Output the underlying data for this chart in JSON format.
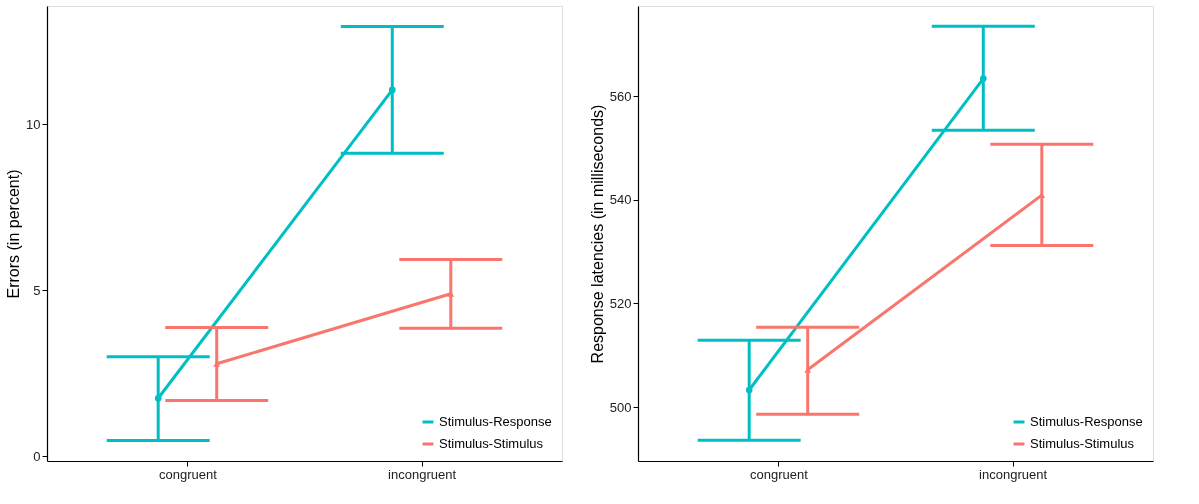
{
  "chart_data": [
    {
      "type": "line",
      "categories": [
        "congruent",
        "incongruent"
      ],
      "ylabel": "Errors (in percent)",
      "ylim": [
        -0.15,
        13.56
      ],
      "yticks": [
        0,
        5,
        10
      ],
      "grid": false,
      "legend": "bottom right",
      "line_style": "solid",
      "series": [
        {
          "name": "Stimulus-Response",
          "color": "#00bfc4",
          "marker": "circle",
          "values": [
            1.74,
            11.03
          ],
          "errors": [
            [
              0.47,
              2.99
            ],
            [
              9.12,
              12.94
            ]
          ]
        },
        {
          "name": "Stimulus-Stimulus",
          "color": "#f8766d",
          "marker": "triangle",
          "values": [
            2.78,
            4.89
          ],
          "errors": [
            [
              1.67,
              3.87
            ],
            [
              3.85,
              5.92
            ]
          ]
        }
      ]
    },
    {
      "type": "line",
      "categories": [
        "congruent",
        "incongruent"
      ],
      "ylabel": "Response latencies (in milliseconds)",
      "ylim": [
        489.6,
        577.4
      ],
      "yticks": [
        500,
        520,
        540,
        560
      ],
      "grid": false,
      "legend": "bottom right",
      "line_style": "solid",
      "series": [
        {
          "name": "Stimulus-Response",
          "color": "#00bfc4",
          "marker": "circle",
          "values": [
            503.3,
            563.4
          ],
          "errors": [
            [
              493.6,
              512.9
            ],
            [
              553.4,
              573.5
            ]
          ]
        },
        {
          "name": "Stimulus-Stimulus",
          "color": "#f8766d",
          "marker": "triangle",
          "values": [
            507.2,
            540.9
          ],
          "errors": [
            [
              498.6,
              515.4
            ],
            [
              531.2,
              550.7
            ]
          ]
        }
      ]
    }
  ]
}
